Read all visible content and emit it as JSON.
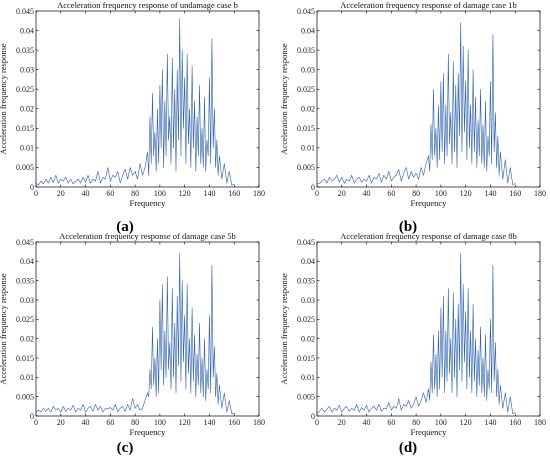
{
  "chart_data": [
    {
      "type": "line",
      "panel_label": "(a)",
      "title": "Acceleration frequency response of undamage case b",
      "xlabel": "Frequency",
      "ylabel": "Acceleration frequency response",
      "xlim": [
        0,
        180
      ],
      "ylim": [
        0,
        0.045
      ],
      "xticks": [
        "0",
        "20",
        "40",
        "60",
        "80",
        "100",
        "120",
        "140",
        "160",
        "180"
      ],
      "yticks": [
        "0",
        "0.005",
        "0.01",
        "0.015",
        "0.02",
        "0.025",
        "0.03",
        "0.035",
        "0.04",
        "0.045"
      ],
      "grid": false,
      "color": "#2b5fb0",
      "x": [
        0,
        2,
        4,
        6,
        8,
        10,
        12,
        14,
        16,
        18,
        20,
        22,
        24,
        26,
        28,
        30,
        32,
        34,
        36,
        38,
        40,
        42,
        44,
        46,
        48,
        50,
        52,
        54,
        56,
        58,
        60,
        62,
        64,
        66,
        68,
        70,
        72,
        74,
        76,
        78,
        80,
        82,
        84,
        86,
        88,
        90,
        91,
        92,
        93,
        94,
        95,
        96,
        97,
        98,
        99,
        100,
        101,
        102,
        103,
        104,
        105,
        106,
        107,
        108,
        109,
        110,
        111,
        112,
        113,
        114,
        115,
        116,
        117,
        118,
        119,
        120,
        121,
        122,
        123,
        124,
        125,
        126,
        127,
        128,
        129,
        130,
        131,
        132,
        133,
        134,
        135,
        136,
        137,
        138,
        139,
        140,
        141,
        142,
        143,
        144,
        145,
        146,
        147,
        148,
        150,
        152,
        154,
        156,
        158,
        160
      ],
      "y": [
        0.001,
        0.0005,
        0.0015,
        0.0008,
        0.002,
        0.001,
        0.0025,
        0.0012,
        0.003,
        0.001,
        0.002,
        0.0015,
        0.0025,
        0.001,
        0.002,
        0.0008,
        0.0015,
        0.002,
        0.001,
        0.0025,
        0.0012,
        0.003,
        0.001,
        0.002,
        0.0015,
        0.004,
        0.001,
        0.0025,
        0.002,
        0.005,
        0.0015,
        0.003,
        0.0025,
        0.004,
        0.001,
        0.003,
        0.0045,
        0.002,
        0.005,
        0.003,
        0.004,
        0.002,
        0.006,
        0.003,
        0.005,
        0.009,
        0.003,
        0.018,
        0.006,
        0.024,
        0.008,
        0.014,
        0.004,
        0.02,
        0.006,
        0.026,
        0.01,
        0.03,
        0.005,
        0.022,
        0.008,
        0.034,
        0.012,
        0.018,
        0.006,
        0.033,
        0.01,
        0.025,
        0.004,
        0.03,
        0.012,
        0.043,
        0.008,
        0.035,
        0.015,
        0.028,
        0.006,
        0.034,
        0.011,
        0.02,
        0.005,
        0.031,
        0.01,
        0.022,
        0.004,
        0.018,
        0.008,
        0.026,
        0.006,
        0.015,
        0.005,
        0.023,
        0.004,
        0.012,
        0.008,
        0.028,
        0.006,
        0.038,
        0.01,
        0.02,
        0.005,
        0.012,
        0.003,
        0.008,
        0.002,
        0.006,
        0.001,
        0.004,
        0.0005,
        0.0008
      ]
    },
    {
      "type": "line",
      "panel_label": "(b)",
      "title": "Acceleration frequency response of damage case 1b",
      "xlabel": "Frequency",
      "ylabel": "Acceleration frequency response",
      "xlim": [
        0,
        180
      ],
      "ylim": [
        0,
        0.045
      ],
      "xticks": [
        "0",
        "20",
        "40",
        "60",
        "80",
        "100",
        "120",
        "140",
        "160",
        "180"
      ],
      "yticks": [
        "0",
        "0.005",
        "0.01",
        "0.015",
        "0.02",
        "0.025",
        "0.03",
        "0.035",
        "0.04",
        "0.045"
      ],
      "grid": false,
      "color": "#2b5fb0",
      "x": [
        0,
        2,
        4,
        6,
        8,
        10,
        12,
        14,
        16,
        18,
        20,
        22,
        24,
        26,
        28,
        30,
        32,
        34,
        36,
        38,
        40,
        42,
        44,
        46,
        48,
        50,
        52,
        54,
        56,
        58,
        60,
        62,
        64,
        66,
        68,
        70,
        72,
        74,
        76,
        78,
        80,
        82,
        84,
        86,
        88,
        90,
        91,
        92,
        93,
        94,
        95,
        96,
        97,
        98,
        99,
        100,
        101,
        102,
        103,
        104,
        105,
        106,
        107,
        108,
        109,
        110,
        111,
        112,
        113,
        114,
        115,
        116,
        117,
        118,
        119,
        120,
        121,
        122,
        123,
        124,
        125,
        126,
        127,
        128,
        129,
        130,
        131,
        132,
        133,
        134,
        135,
        136,
        137,
        138,
        139,
        140,
        141,
        142,
        143,
        144,
        145,
        146,
        147,
        148,
        150,
        152,
        154,
        156,
        158,
        160
      ],
      "y": [
        0.0008,
        0.001,
        0.0015,
        0.002,
        0.001,
        0.0025,
        0.0015,
        0.002,
        0.003,
        0.0012,
        0.0025,
        0.001,
        0.002,
        0.0015,
        0.003,
        0.001,
        0.002,
        0.0025,
        0.0012,
        0.002,
        0.0015,
        0.003,
        0.001,
        0.0025,
        0.002,
        0.0035,
        0.0012,
        0.003,
        0.002,
        0.004,
        0.0015,
        0.0025,
        0.003,
        0.0045,
        0.0015,
        0.0035,
        0.005,
        0.002,
        0.004,
        0.0025,
        0.0035,
        0.002,
        0.005,
        0.003,
        0.006,
        0.008,
        0.004,
        0.016,
        0.007,
        0.025,
        0.008,
        0.015,
        0.005,
        0.021,
        0.007,
        0.027,
        0.009,
        0.029,
        0.006,
        0.021,
        0.008,
        0.034,
        0.011,
        0.019,
        0.006,
        0.032,
        0.009,
        0.026,
        0.005,
        0.029,
        0.013,
        0.042,
        0.009,
        0.036,
        0.014,
        0.027,
        0.007,
        0.035,
        0.01,
        0.021,
        0.006,
        0.03,
        0.009,
        0.023,
        0.005,
        0.017,
        0.008,
        0.025,
        0.006,
        0.016,
        0.005,
        0.022,
        0.004,
        0.013,
        0.008,
        0.027,
        0.006,
        0.039,
        0.009,
        0.019,
        0.005,
        0.013,
        0.003,
        0.009,
        0.002,
        0.007,
        0.001,
        0.005,
        0.0006,
        0.0009
      ]
    },
    {
      "type": "line",
      "panel_label": "(c)",
      "title": "Acceleration frequency response of damage case 5b",
      "xlabel": "Frequency",
      "ylabel": "Acceleration frequency response",
      "xlim": [
        0,
        180
      ],
      "ylim": [
        0,
        0.045
      ],
      "xticks": [
        "0",
        "20",
        "40",
        "60",
        "80",
        "100",
        "120",
        "140",
        "160",
        "180"
      ],
      "yticks": [
        "0",
        "0.005",
        "0.01",
        "0.015",
        "0.02",
        "0.025",
        "0.03",
        "0.035",
        "0.04",
        "0.045"
      ],
      "grid": false,
      "color": "#2b5fb0",
      "x": [
        0,
        2,
        4,
        6,
        8,
        10,
        12,
        14,
        16,
        18,
        20,
        22,
        24,
        26,
        28,
        30,
        32,
        34,
        36,
        38,
        40,
        42,
        44,
        46,
        48,
        50,
        52,
        54,
        56,
        58,
        60,
        62,
        64,
        66,
        68,
        70,
        72,
        74,
        76,
        78,
        80,
        82,
        84,
        86,
        88,
        90,
        91,
        92,
        93,
        94,
        95,
        96,
        97,
        98,
        99,
        100,
        101,
        102,
        103,
        104,
        105,
        106,
        107,
        108,
        109,
        110,
        111,
        112,
        113,
        114,
        115,
        116,
        117,
        118,
        119,
        120,
        121,
        122,
        123,
        124,
        125,
        126,
        127,
        128,
        129,
        130,
        131,
        132,
        133,
        134,
        135,
        136,
        137,
        138,
        139,
        140,
        141,
        142,
        143,
        144,
        145,
        146,
        147,
        148,
        150,
        152,
        154,
        156,
        158,
        160
      ],
      "y": [
        0.001,
        0.0015,
        0.001,
        0.002,
        0.0012,
        0.002,
        0.001,
        0.0025,
        0.0015,
        0.002,
        0.001,
        0.0025,
        0.0012,
        0.002,
        0.0015,
        0.0028,
        0.001,
        0.002,
        0.0015,
        0.003,
        0.001,
        0.002,
        0.0025,
        0.0012,
        0.003,
        0.0015,
        0.0025,
        0.001,
        0.002,
        0.0018,
        0.0022,
        0.0015,
        0.003,
        0.001,
        0.002,
        0.0025,
        0.0012,
        0.003,
        0.0015,
        0.0045,
        0.002,
        0.003,
        0.0015,
        0.002,
        0.004,
        0.006,
        0.005,
        0.012,
        0.007,
        0.023,
        0.008,
        0.015,
        0.005,
        0.02,
        0.006,
        0.03,
        0.012,
        0.034,
        0.008,
        0.022,
        0.01,
        0.036,
        0.012,
        0.019,
        0.007,
        0.033,
        0.01,
        0.024,
        0.006,
        0.031,
        0.013,
        0.042,
        0.009,
        0.035,
        0.014,
        0.026,
        0.007,
        0.034,
        0.011,
        0.02,
        0.006,
        0.028,
        0.009,
        0.021,
        0.005,
        0.016,
        0.008,
        0.024,
        0.006,
        0.015,
        0.005,
        0.02,
        0.004,
        0.012,
        0.007,
        0.026,
        0.006,
        0.039,
        0.01,
        0.018,
        0.005,
        0.011,
        0.003,
        0.008,
        0.002,
        0.006,
        0.001,
        0.004,
        0.0006,
        0.0008
      ]
    },
    {
      "type": "line",
      "panel_label": "(d)",
      "title": "Acceleration frequency response of damage case 8b",
      "xlabel": "Frequency",
      "ylabel": "Acceleration frequency response",
      "xlim": [
        0,
        180
      ],
      "ylim": [
        0,
        0.045
      ],
      "xticks": [
        "0",
        "20",
        "40",
        "60",
        "80",
        "100",
        "120",
        "140",
        "160",
        "180"
      ],
      "yticks": [
        "0",
        "0.005",
        "0.01",
        "0.015",
        "0.02",
        "0.025",
        "0.03",
        "0.035",
        "0.04",
        "0.045"
      ],
      "grid": false,
      "color": "#2b5fb0",
      "x": [
        0,
        2,
        4,
        6,
        8,
        10,
        12,
        14,
        16,
        18,
        20,
        22,
        24,
        26,
        28,
        30,
        32,
        34,
        36,
        38,
        40,
        42,
        44,
        46,
        48,
        50,
        52,
        54,
        56,
        58,
        60,
        62,
        64,
        66,
        68,
        70,
        72,
        74,
        76,
        78,
        80,
        82,
        84,
        86,
        88,
        90,
        91,
        92,
        93,
        94,
        95,
        96,
        97,
        98,
        99,
        100,
        101,
        102,
        103,
        104,
        105,
        106,
        107,
        108,
        109,
        110,
        111,
        112,
        113,
        114,
        115,
        116,
        117,
        118,
        119,
        120,
        121,
        122,
        123,
        124,
        125,
        126,
        127,
        128,
        129,
        130,
        131,
        132,
        133,
        134,
        135,
        136,
        137,
        138,
        139,
        140,
        141,
        142,
        143,
        144,
        145,
        146,
        147,
        148,
        150,
        152,
        154,
        156,
        158,
        160
      ],
      "y": [
        0.0008,
        0.0012,
        0.002,
        0.001,
        0.0018,
        0.0025,
        0.001,
        0.002,
        0.0015,
        0.0028,
        0.001,
        0.002,
        0.0025,
        0.0012,
        0.002,
        0.0015,
        0.003,
        0.001,
        0.0022,
        0.0015,
        0.0028,
        0.001,
        0.002,
        0.0025,
        0.0015,
        0.003,
        0.0012,
        0.002,
        0.0018,
        0.0035,
        0.0015,
        0.0025,
        0.002,
        0.0045,
        0.0015,
        0.003,
        0.0025,
        0.004,
        0.002,
        0.003,
        0.005,
        0.0025,
        0.004,
        0.006,
        0.0035,
        0.007,
        0.004,
        0.014,
        0.006,
        0.021,
        0.007,
        0.016,
        0.005,
        0.022,
        0.007,
        0.028,
        0.01,
        0.031,
        0.006,
        0.022,
        0.009,
        0.033,
        0.011,
        0.02,
        0.006,
        0.032,
        0.01,
        0.025,
        0.005,
        0.029,
        0.012,
        0.042,
        0.009,
        0.034,
        0.014,
        0.027,
        0.007,
        0.033,
        0.01,
        0.022,
        0.006,
        0.029,
        0.009,
        0.02,
        0.005,
        0.017,
        0.008,
        0.023,
        0.006,
        0.015,
        0.005,
        0.021,
        0.004,
        0.012,
        0.007,
        0.025,
        0.006,
        0.039,
        0.009,
        0.019,
        0.005,
        0.012,
        0.003,
        0.008,
        0.002,
        0.006,
        0.001,
        0.005,
        0.0006,
        0.0009
      ]
    }
  ]
}
